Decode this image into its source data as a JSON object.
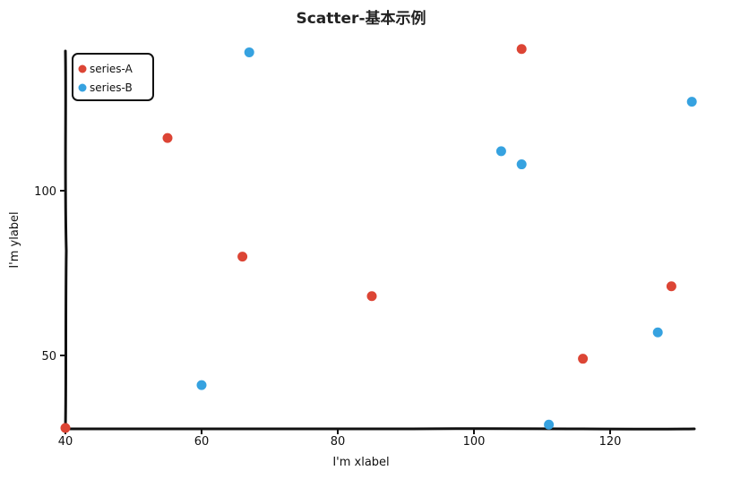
{
  "chart_data": {
    "type": "scatter",
    "title": "Scatter-基本示例",
    "xlabel": "I'm xlabel",
    "ylabel": "I'm ylabel",
    "xlim": [
      40,
      132
    ],
    "ylim": [
      28,
      145
    ],
    "xticks": [
      40,
      60,
      80,
      100,
      120
    ],
    "yticks": [
      50,
      100
    ],
    "legend_position": "top-left",
    "series": [
      {
        "name": "series-A",
        "color": "#dc4535",
        "points": [
          {
            "x": 40,
            "y": 28
          },
          {
            "x": 55,
            "y": 116
          },
          {
            "x": 66,
            "y": 80
          },
          {
            "x": 85,
            "y": 68
          },
          {
            "x": 107,
            "y": 143
          },
          {
            "x": 116,
            "y": 49
          },
          {
            "x": 129,
            "y": 71
          }
        ]
      },
      {
        "name": "series-B",
        "color": "#36a2e0",
        "points": [
          {
            "x": 60,
            "y": 41
          },
          {
            "x": 67,
            "y": 142
          },
          {
            "x": 104,
            "y": 112
          },
          {
            "x": 107,
            "y": 108
          },
          {
            "x": 111,
            "y": 29
          },
          {
            "x": 127,
            "y": 57
          },
          {
            "x": 132,
            "y": 127
          }
        ]
      }
    ]
  }
}
